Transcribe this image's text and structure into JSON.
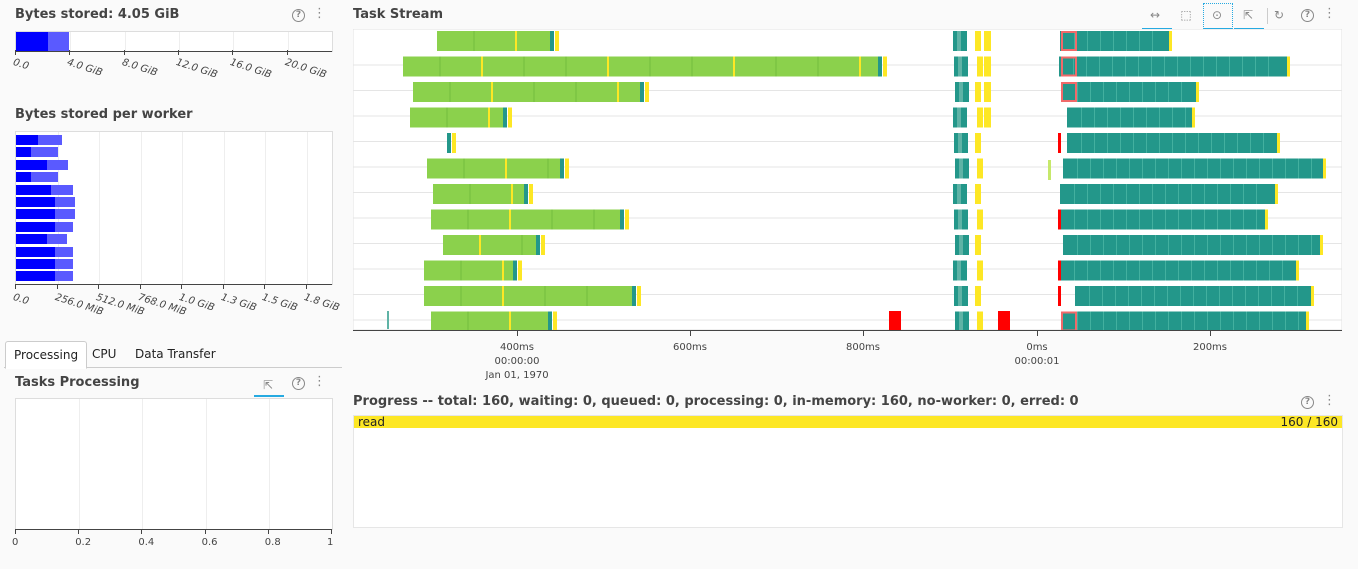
{
  "colors": {
    "dark_blue": "#0000ff",
    "light_blue": "#5a5aff",
    "green": "#8bd14c",
    "teal": "#23978a",
    "yellow": "#fde725",
    "red": "#ff0000",
    "red_outline": "#f06a6a",
    "grid": "#e5e5e5"
  },
  "bytes_stored": {
    "title": "Bytes stored: 4.05 GiB",
    "ticks": [
      "0.0",
      "4.0 GiB",
      "8.0 GiB",
      "12.0 GiB",
      "16.0 GiB",
      "20.0 GiB"
    ],
    "bar": {
      "max_gib": 24,
      "dark_gib": 2.4,
      "total_gib": 4.05
    }
  },
  "bytes_per_worker": {
    "title": "Bytes stored per worker",
    "ticks": [
      "0.0",
      "256.0 MiB",
      "512.0 MiB",
      "768.0 MiB",
      "1.0 GiB",
      "1.3 GiB",
      "1.5 GiB",
      "1.8 GiB"
    ],
    "max_mib": 2048,
    "workers": [
      {
        "dark": 140,
        "total": 300
      },
      {
        "dark": 100,
        "total": 270
      },
      {
        "dark": 200,
        "total": 340
      },
      {
        "dark": 100,
        "total": 270
      },
      {
        "dark": 230,
        "total": 370
      },
      {
        "dark": 250,
        "total": 380
      },
      {
        "dark": 250,
        "total": 380
      },
      {
        "dark": 250,
        "total": 370
      },
      {
        "dark": 200,
        "total": 330
      },
      {
        "dark": 250,
        "total": 370
      },
      {
        "dark": 250,
        "total": 370
      },
      {
        "dark": 250,
        "total": 370
      }
    ]
  },
  "tabs": [
    {
      "label": "Processing",
      "selected": true
    },
    {
      "label": "CPU",
      "selected": false
    },
    {
      "label": "Data Transfer",
      "selected": false
    }
  ],
  "tasks_processing": {
    "title": "Tasks Processing",
    "ticks": [
      "0",
      "0.2",
      "0.4",
      "0.6",
      "0.8",
      "1"
    ]
  },
  "task_stream": {
    "title": "Task Stream",
    "tools": [
      "pan-icon",
      "box-zoom-icon",
      "wheel-zoom-icon",
      "tap-icon",
      "reset-icon"
    ],
    "ticks": [
      {
        "label": "400ms",
        "sub1": "00:00:00",
        "sub2": "Jan 01, 1970"
      },
      {
        "label": "600ms",
        "sub1": "",
        "sub2": ""
      },
      {
        "label": "800ms",
        "sub1": "",
        "sub2": ""
      },
      {
        "label": "0ms",
        "sub1": "00:00:01",
        "sub2": ""
      },
      {
        "label": "200ms",
        "sub1": "",
        "sub2": ""
      }
    ]
  },
  "progress": {
    "title": "Progress -- total: 160, waiting: 0, queued: 0, processing: 0, in-memory: 160, no-worker: 0, erred: 0",
    "rows": [
      {
        "name": "read",
        "count": "160 / 160",
        "fraction": 1.0
      }
    ]
  }
}
